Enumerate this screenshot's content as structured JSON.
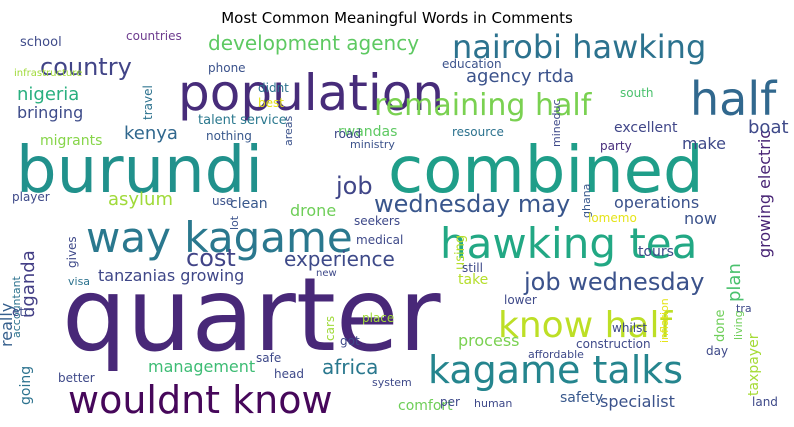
{
  "chart_data": {
    "type": "wordcloud",
    "title": "Most Common Meaningful Words in Comments",
    "words": [
      {
        "text": "quarter",
        "color": "#482878"
      },
      {
        "text": "burundi",
        "color": "#21918c"
      },
      {
        "text": "combined",
        "color": "#1f9e89"
      },
      {
        "text": "population",
        "color": "#472c7a"
      },
      {
        "text": "half",
        "color": "#31688e"
      },
      {
        "text": "way kagame",
        "color": "#2a788e"
      },
      {
        "text": "hawking tea",
        "color": "#22a884"
      },
      {
        "text": "nairobi hawking",
        "color": "#2c728e"
      },
      {
        "text": "wouldnt know",
        "color": "#46075a"
      },
      {
        "text": "kagame talks",
        "color": "#25858e"
      },
      {
        "text": "know half",
        "color": "#bddf26"
      },
      {
        "text": "remaining half",
        "color": "#7ad151"
      },
      {
        "text": "job wednesday",
        "color": "#3b528b"
      },
      {
        "text": "wednesday may",
        "color": "#39568c"
      },
      {
        "text": "cost",
        "color": "#414487"
      },
      {
        "text": "country",
        "color": "#414487"
      },
      {
        "text": "job",
        "color": "#404688"
      },
      {
        "text": "development agency",
        "color": "#5ec962"
      },
      {
        "text": "experience",
        "color": "#3e4a89"
      },
      {
        "text": "africa",
        "color": "#2a788e"
      },
      {
        "text": "nigeria",
        "color": "#29af7f"
      },
      {
        "text": "agency rtda",
        "color": "#3b528b"
      },
      {
        "text": "kenya",
        "color": "#31688e"
      },
      {
        "text": "uganda",
        "color": "#433e85"
      },
      {
        "text": "tanzanias growing",
        "color": "#3f4788"
      },
      {
        "text": "operations",
        "color": "#3b528b"
      },
      {
        "text": "plan",
        "color": "#4ac16d"
      },
      {
        "text": "bringing",
        "color": "#3e4c8a"
      },
      {
        "text": "asylum",
        "color": "#a0da39"
      },
      {
        "text": "boat",
        "color": "#3e4989"
      },
      {
        "text": "growing electric",
        "color": "#482475"
      },
      {
        "text": "really",
        "color": "#355f8d"
      },
      {
        "text": "management",
        "color": "#3dbc74"
      },
      {
        "text": "specialist",
        "color": "#3b528b"
      },
      {
        "text": "process",
        "color": "#7ad151"
      },
      {
        "text": "taxpayer",
        "color": "#a5db36"
      },
      {
        "text": "drone",
        "color": "#6ece58"
      },
      {
        "text": "now",
        "color": "#3b528b"
      },
      {
        "text": "excellent",
        "color": "#404688"
      },
      {
        "text": "make",
        "color": "#3e4989"
      },
      {
        "text": "migrants",
        "color": "#86d549"
      },
      {
        "text": "going",
        "color": "#2c728e"
      },
      {
        "text": "safety",
        "color": "#38588c"
      },
      {
        "text": "comfort",
        "color": "#6ece58"
      },
      {
        "text": "rwandas",
        "color": "#5ec962"
      },
      {
        "text": "talent service",
        "color": "#2a788e"
      },
      {
        "text": "clean",
        "color": "#38588c"
      },
      {
        "text": "using",
        "color": "#b5de2b"
      },
      {
        "text": "tours",
        "color": "#3e4989"
      },
      {
        "text": "take",
        "color": "#b5de2b"
      },
      {
        "text": "still",
        "color": "#3e4a89"
      },
      {
        "text": "school",
        "color": "#3e4a89"
      },
      {
        "text": "countries",
        "color": "#6c3b8e"
      },
      {
        "text": "phone",
        "color": "#3b528b"
      },
      {
        "text": "education",
        "color": "#3b528b"
      },
      {
        "text": "travel",
        "color": "#2c728e"
      },
      {
        "text": "didnt",
        "color": "#2c728e"
      },
      {
        "text": "infrastructure",
        "color": "#a0da39"
      },
      {
        "text": "south",
        "color": "#4ac16d"
      },
      {
        "text": "best",
        "color": "#e5e419"
      },
      {
        "text": "nothing",
        "color": "#38588c"
      },
      {
        "text": "resource",
        "color": "#2c728e"
      },
      {
        "text": "party",
        "color": "#472d7b"
      },
      {
        "text": "mineduc",
        "color": "#3e4989"
      },
      {
        "text": "ministry",
        "color": "#3b528b"
      },
      {
        "text": "road",
        "color": "#3e4989"
      },
      {
        "text": "areas",
        "color": "#3b528b"
      },
      {
        "text": "ghana",
        "color": "#38588c"
      },
      {
        "text": "lomemo",
        "color": "#e5e419"
      },
      {
        "text": "seekers",
        "color": "#3e4989"
      },
      {
        "text": "medical",
        "color": "#3e4989"
      },
      {
        "text": "player",
        "color": "#3e4989"
      },
      {
        "text": "use",
        "color": "#3b528b"
      },
      {
        "text": "lot",
        "color": "#3b528b"
      },
      {
        "text": "gives",
        "color": "#3e4989"
      },
      {
        "text": "accountant",
        "color": "#2c728e"
      },
      {
        "text": "visa",
        "color": "#2c728e"
      },
      {
        "text": "etc",
        "color": "#3e4989"
      },
      {
        "text": "cars",
        "color": "#a0da39"
      },
      {
        "text": "place",
        "color": "#a0da39"
      },
      {
        "text": "got",
        "color": "#3e4989"
      },
      {
        "text": "safe",
        "color": "#3e4989"
      },
      {
        "text": "head",
        "color": "#3e4989"
      },
      {
        "text": "better",
        "color": "#3e4989"
      },
      {
        "text": "system",
        "color": "#3e4989"
      },
      {
        "text": "per",
        "color": "#3e4989"
      },
      {
        "text": "human",
        "color": "#3e4989"
      },
      {
        "text": "affordable",
        "color": "#3e4989"
      },
      {
        "text": "construction",
        "color": "#3e4989"
      },
      {
        "text": "day",
        "color": "#3e4989"
      },
      {
        "text": "done",
        "color": "#6ece58"
      },
      {
        "text": "living",
        "color": "#6ece58"
      },
      {
        "text": "lower",
        "color": "#3e4989"
      },
      {
        "text": "whilst",
        "color": "#3e4989"
      },
      {
        "text": "inflation",
        "color": "#e5e419"
      },
      {
        "text": "tra",
        "color": "#3e4989"
      },
      {
        "text": "land",
        "color": "#3e4989"
      },
      {
        "text": "new",
        "color": "#3e4989"
      }
    ]
  }
}
